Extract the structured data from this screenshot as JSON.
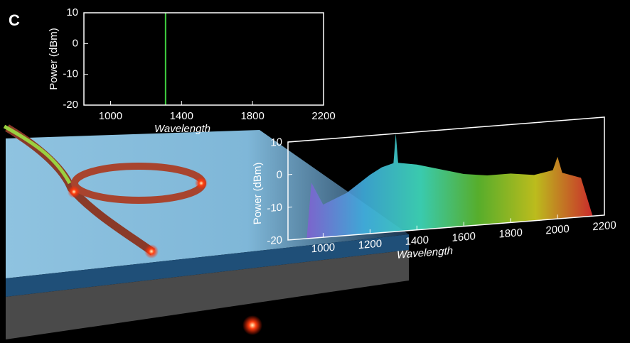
{
  "panel_label": "C",
  "chart_data": [
    {
      "type": "stem",
      "x_label": "Wavelength",
      "y_label": "Power (dBm)",
      "x": [
        1310
      ],
      "values": [
        10
      ],
      "color": "#3fcf3f",
      "xlim": [
        850,
        2200
      ],
      "ylim": [
        -20,
        10
      ],
      "xticks": [
        1000,
        1400,
        1800,
        2200
      ],
      "yticks": [
        -20,
        -10,
        0,
        10
      ]
    },
    {
      "type": "area",
      "x_label": "Wavelength",
      "y_label": "Power (dBm)",
      "x": [
        930,
        950,
        1000,
        1100,
        1200,
        1250,
        1300,
        1310,
        1320,
        1400,
        1500,
        1600,
        1700,
        1800,
        1900,
        1980,
        2000,
        2020,
        2100,
        2150
      ],
      "values": [
        -20,
        -3,
        -10,
        -7,
        -2,
        0,
        1,
        10,
        1,
        0,
        -2,
        -4,
        -5,
        -5,
        -6,
        -5,
        -1,
        -6,
        -8,
        -20
      ],
      "colors": [
        "#8060d0",
        "#40b0e0",
        "#40e0c0",
        "#60c030",
        "#d0d020",
        "#e03030"
      ],
      "xlim": [
        850,
        2200
      ],
      "ylim": [
        -20,
        10
      ],
      "xticks": [
        1000,
        1200,
        1400,
        1600,
        1800,
        2000,
        2200
      ],
      "yticks": [
        -20,
        -10,
        0,
        10
      ]
    }
  ]
}
